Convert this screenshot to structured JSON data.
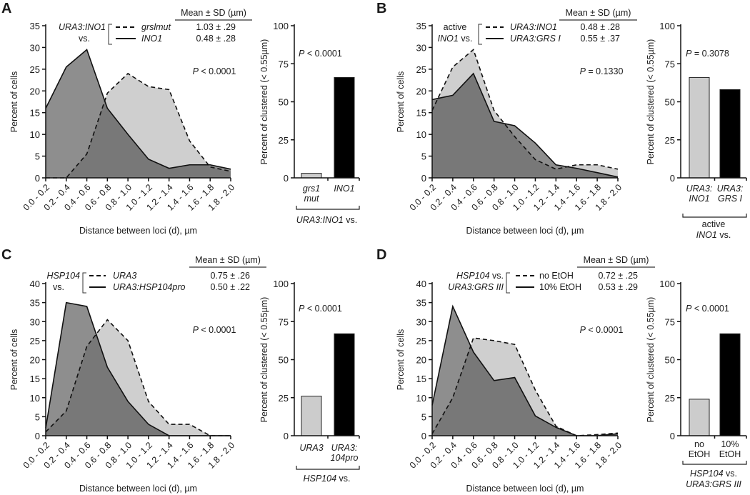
{
  "chart_data": [
    {
      "panel_letter": "A",
      "area": {
        "type": "area",
        "xlabel": "Distance between loci (d), µm",
        "ylabel": "Percent of cells",
        "categories": [
          "0.0 - 0.2",
          "0.2 - 0.4",
          "0.4 - 0.6",
          "0.6 - 0.8",
          "0.8 - 1.0",
          "1.0 - 1.2",
          "1.2 - 1.4",
          "1.4 - 1.6",
          "1.6 - 1.8",
          "1.8 - 2.0"
        ],
        "ylim": [
          0,
          35
        ],
        "yticks": [
          "0",
          "5",
          "10",
          "15",
          "20",
          "25",
          "30",
          "35"
        ],
        "series": [
          {
            "name": "grslmut",
            "line": "dashed",
            "values": [
              0,
              0,
              5.5,
              19.5,
              24,
              21,
              20.3,
              8.5,
              2.5,
              1.5
            ]
          },
          {
            "name": "INO1",
            "line": "solid",
            "values": [
              16,
              25.5,
              29.5,
              16,
              10,
              4.3,
              2.2,
              3,
              3,
              2
            ]
          }
        ],
        "p_value": [
          {
            "t": "P",
            "i": true
          },
          {
            "t": " < 0.0001",
            "i": false
          }
        ],
        "legend": {
          "header": "Mean ± SD (µm)",
          "group": [
            [
              {
                "t": "URA3:INO1",
                "i": true
              }
            ],
            [
              {
                "t": "vs.",
                "i": false
              }
            ]
          ],
          "entries": [
            {
              "name": [
                {
                  "t": "grslmut",
                  "i": true
                }
              ],
              "value": "1.03 ± .29"
            },
            {
              "name": [
                {
                  "t": "INO1",
                  "i": true
                }
              ],
              "value": "0.48 ± .28"
            }
          ]
        }
      },
      "bar": {
        "type": "bar",
        "ylabel": "Percent of clustered (< 0.55µm)",
        "ylim": [
          0,
          100
        ],
        "yticks": [
          "0",
          "25",
          "50",
          "75",
          "100"
        ],
        "values": [
          3,
          66
        ],
        "colors": [
          "#cccccc",
          "#000000"
        ],
        "categories": [
          [
            [
              {
                "t": "grs1",
                "i": true
              }
            ],
            [
              {
                "t": "mut",
                "i": true
              }
            ]
          ],
          [
            [
              {
                "t": "INO1",
                "i": true
              }
            ]
          ]
        ],
        "group": [
          [
            {
              "t": "URA3:INO1",
              "i": true
            },
            {
              "t": " vs.",
              "i": false
            }
          ]
        ],
        "p_value": [
          {
            "t": "P",
            "i": true
          },
          {
            "t": " < 0.0001",
            "i": false
          }
        ]
      }
    },
    {
      "panel_letter": "B",
      "area": {
        "type": "area",
        "xlabel": "Distance between loci (d), µm",
        "ylabel": "Percent of cells",
        "categories": [
          "0.0 - 0.2",
          "0.2 - 0.4",
          "0.4 - 0.6",
          "0.6 - 0.8",
          "0.8 - 1.0",
          "1.0 - 1.2",
          "1.2 - 1.4",
          "1.4 - 1.6",
          "1.6 - 1.8",
          "1.8 - 2.0"
        ],
        "ylim": [
          0,
          35
        ],
        "yticks": [
          "0",
          "5",
          "10",
          "15",
          "20",
          "25",
          "30",
          "35"
        ],
        "series": [
          {
            "name": "URA3:INO1",
            "line": "dashed",
            "values": [
              15.5,
              25.5,
              29.5,
              15.5,
              9.5,
              4.2,
              2.0,
              3,
              3,
              2
            ]
          },
          {
            "name": "URA3:GRS I",
            "line": "solid",
            "values": [
              18,
              19,
              24,
              13,
              12,
              8,
              3,
              2.2,
              1.2,
              0.2
            ]
          }
        ],
        "p_value": [
          {
            "t": "P",
            "i": true
          },
          {
            "t": " = 0.1330",
            "i": false
          }
        ],
        "legend": {
          "header": "Mean ± SD (µm)",
          "group": [
            [
              {
                "t": "active",
                "i": false
              }
            ],
            [
              {
                "t": "INO1",
                "i": true
              },
              {
                "t": " vs.",
                "i": false
              }
            ]
          ],
          "entries": [
            {
              "name": [
                {
                  "t": "URA3:INO1",
                  "i": true
                }
              ],
              "value": "0.48 ± .28"
            },
            {
              "name": [
                {
                  "t": "URA3:GRS I",
                  "i": true
                }
              ],
              "value": "0.55 ± .37"
            }
          ]
        }
      },
      "bar": {
        "type": "bar",
        "ylabel": "Percent of clustered (< 0.55µm)",
        "ylim": [
          0,
          100
        ],
        "yticks": [
          "0",
          "25",
          "50",
          "75",
          "100"
        ],
        "values": [
          66,
          58
        ],
        "colors": [
          "#cccccc",
          "#000000"
        ],
        "categories": [
          [
            [
              {
                "t": "URA3:",
                "i": true
              }
            ],
            [
              {
                "t": "INO1",
                "i": true
              }
            ]
          ],
          [
            [
              {
                "t": "URA3:",
                "i": true
              }
            ],
            [
              {
                "t": "GRS I",
                "i": true
              }
            ]
          ]
        ],
        "group": [
          [
            {
              "t": "active",
              "i": false
            }
          ],
          [
            {
              "t": "INO1",
              "i": true
            },
            {
              "t": " vs.",
              "i": false
            }
          ]
        ],
        "p_value": [
          {
            "t": "P",
            "i": true
          },
          {
            "t": " = 0.3078",
            "i": false
          }
        ]
      }
    },
    {
      "panel_letter": "C",
      "area": {
        "type": "area",
        "xlabel": "Distance between loci (d), µm",
        "ylabel": "Percent of cells",
        "categories": [
          "0.0 - 0.2",
          "0.2 - 0.4",
          "0.4 - 0.6",
          "0.6 - 0.8",
          "0.8 - 1.0",
          "1.0 - 1.2",
          "1.2 - 1.4",
          "1.4 - 1.6",
          "1.6 - 1.8",
          "1.8 - 2.0"
        ],
        "ylim": [
          0,
          40
        ],
        "yticks": [
          "0",
          "5",
          "10",
          "15",
          "20",
          "25",
          "30",
          "35",
          "40"
        ],
        "series": [
          {
            "name": "URA3",
            "line": "dashed",
            "values": [
              1,
              6.5,
              23.5,
              30.5,
              25,
              9,
              3,
              3,
              0,
              0
            ]
          },
          {
            "name": "URA3:HSP104pro",
            "line": "solid",
            "values": [
              2,
              35,
              34,
              18,
              9,
              3,
              0,
              0,
              0,
              0
            ]
          }
        ],
        "p_value": [
          {
            "t": "P",
            "i": true
          },
          {
            "t": " < 0.0001",
            "i": false
          }
        ],
        "legend": {
          "header": "Mean ± SD (µm)",
          "group": [
            [
              {
                "t": "HSP104",
                "i": true
              }
            ],
            [
              {
                "t": "vs.",
                "i": false
              }
            ]
          ],
          "entries": [
            {
              "name": [
                {
                  "t": "URA3",
                  "i": true
                }
              ],
              "value": "0.75 ± .26"
            },
            {
              "name": [
                {
                  "t": "URA3:HSP104pro",
                  "i": true
                }
              ],
              "value": "0.50 ± .22"
            }
          ]
        }
      },
      "bar": {
        "type": "bar",
        "ylabel": "Percent of clustered (< 0.55µm)",
        "ylim": [
          0,
          100
        ],
        "yticks": [
          "0",
          "25",
          "50",
          "75",
          "100"
        ],
        "values": [
          26,
          67
        ],
        "colors": [
          "#cccccc",
          "#000000"
        ],
        "categories": [
          [
            [
              {
                "t": "URA3",
                "i": true
              }
            ]
          ],
          [
            [
              {
                "t": "URA3:",
                "i": true
              }
            ],
            [
              {
                "t": "104pro",
                "i": true
              }
            ]
          ]
        ],
        "group": [
          [
            {
              "t": "HSP104",
              "i": true
            },
            {
              "t": " vs.",
              "i": false
            }
          ]
        ],
        "p_value": [
          {
            "t": "P",
            "i": true
          },
          {
            "t": " < 0.0001",
            "i": false
          }
        ]
      }
    },
    {
      "panel_letter": "D",
      "area": {
        "type": "area",
        "xlabel": "Distance between loci (d), µm",
        "ylabel": "Percent of cells",
        "categories": [
          "0.0 - 0.2",
          "0.2 - 0.4",
          "0.4 - 0.6",
          "0.6 - 0.8",
          "0.8 - 1.0",
          "1.0 - 1.2",
          "1.2 - 1.4",
          "1.4 - 1.6",
          "1.6 - 1.8",
          "1.8 - 2.0"
        ],
        "ylim": [
          0,
          40
        ],
        "yticks": [
          "0",
          "5",
          "10",
          "15",
          "20",
          "25",
          "30",
          "35",
          "40"
        ],
        "series": [
          {
            "name": "no EtOH",
            "line": "dashed",
            "values": [
              0.5,
              10,
              25.7,
              25,
              24,
              12,
              2.5,
              0,
              0.3,
              0.7
            ]
          },
          {
            "name": "10% EtOH",
            "line": "solid",
            "values": [
              8,
              34,
              22,
              14.5,
              15.3,
              5.2,
              2.2,
              0,
              0,
              0.5
            ]
          }
        ],
        "p_value": [
          {
            "t": "P",
            "i": true
          },
          {
            "t": " < 0.0001",
            "i": false
          }
        ],
        "legend": {
          "header": "Mean ± SD (µm)",
          "group": [
            [
              {
                "t": "HSP104",
                "i": true
              },
              {
                "t": " vs.",
                "i": false
              }
            ],
            [
              {
                "t": "URA3:GRS III",
                "i": true
              }
            ]
          ],
          "entries": [
            {
              "name": [
                {
                  "t": "no EtOH",
                  "i": false
                }
              ],
              "value": "0.72 ± .25"
            },
            {
              "name": [
                {
                  "t": "10% EtOH",
                  "i": false
                }
              ],
              "value": "0.53 ± .29"
            }
          ]
        }
      },
      "bar": {
        "type": "bar",
        "ylabel": "Percent of clustered (< 0.55µm)",
        "ylim": [
          0,
          100
        ],
        "yticks": [
          "0",
          "25",
          "50",
          "75",
          "100"
        ],
        "values": [
          24,
          67
        ],
        "colors": [
          "#cccccc",
          "#000000"
        ],
        "categories": [
          [
            [
              {
                "t": "no",
                "i": false
              }
            ],
            [
              {
                "t": "EtOH",
                "i": false
              }
            ]
          ],
          [
            [
              {
                "t": "10%",
                "i": false
              }
            ],
            [
              {
                "t": "EtOH",
                "i": false
              }
            ]
          ]
        ],
        "group": [
          [
            {
              "t": "HSP104",
              "i": true
            },
            {
              "t": " vs.",
              "i": false
            }
          ],
          [
            {
              "t": "URA3:GRS III",
              "i": true
            }
          ]
        ],
        "p_value": [
          {
            "t": "P",
            "i": true
          },
          {
            "t": " < 0.0001",
            "i": false
          }
        ]
      }
    }
  ]
}
